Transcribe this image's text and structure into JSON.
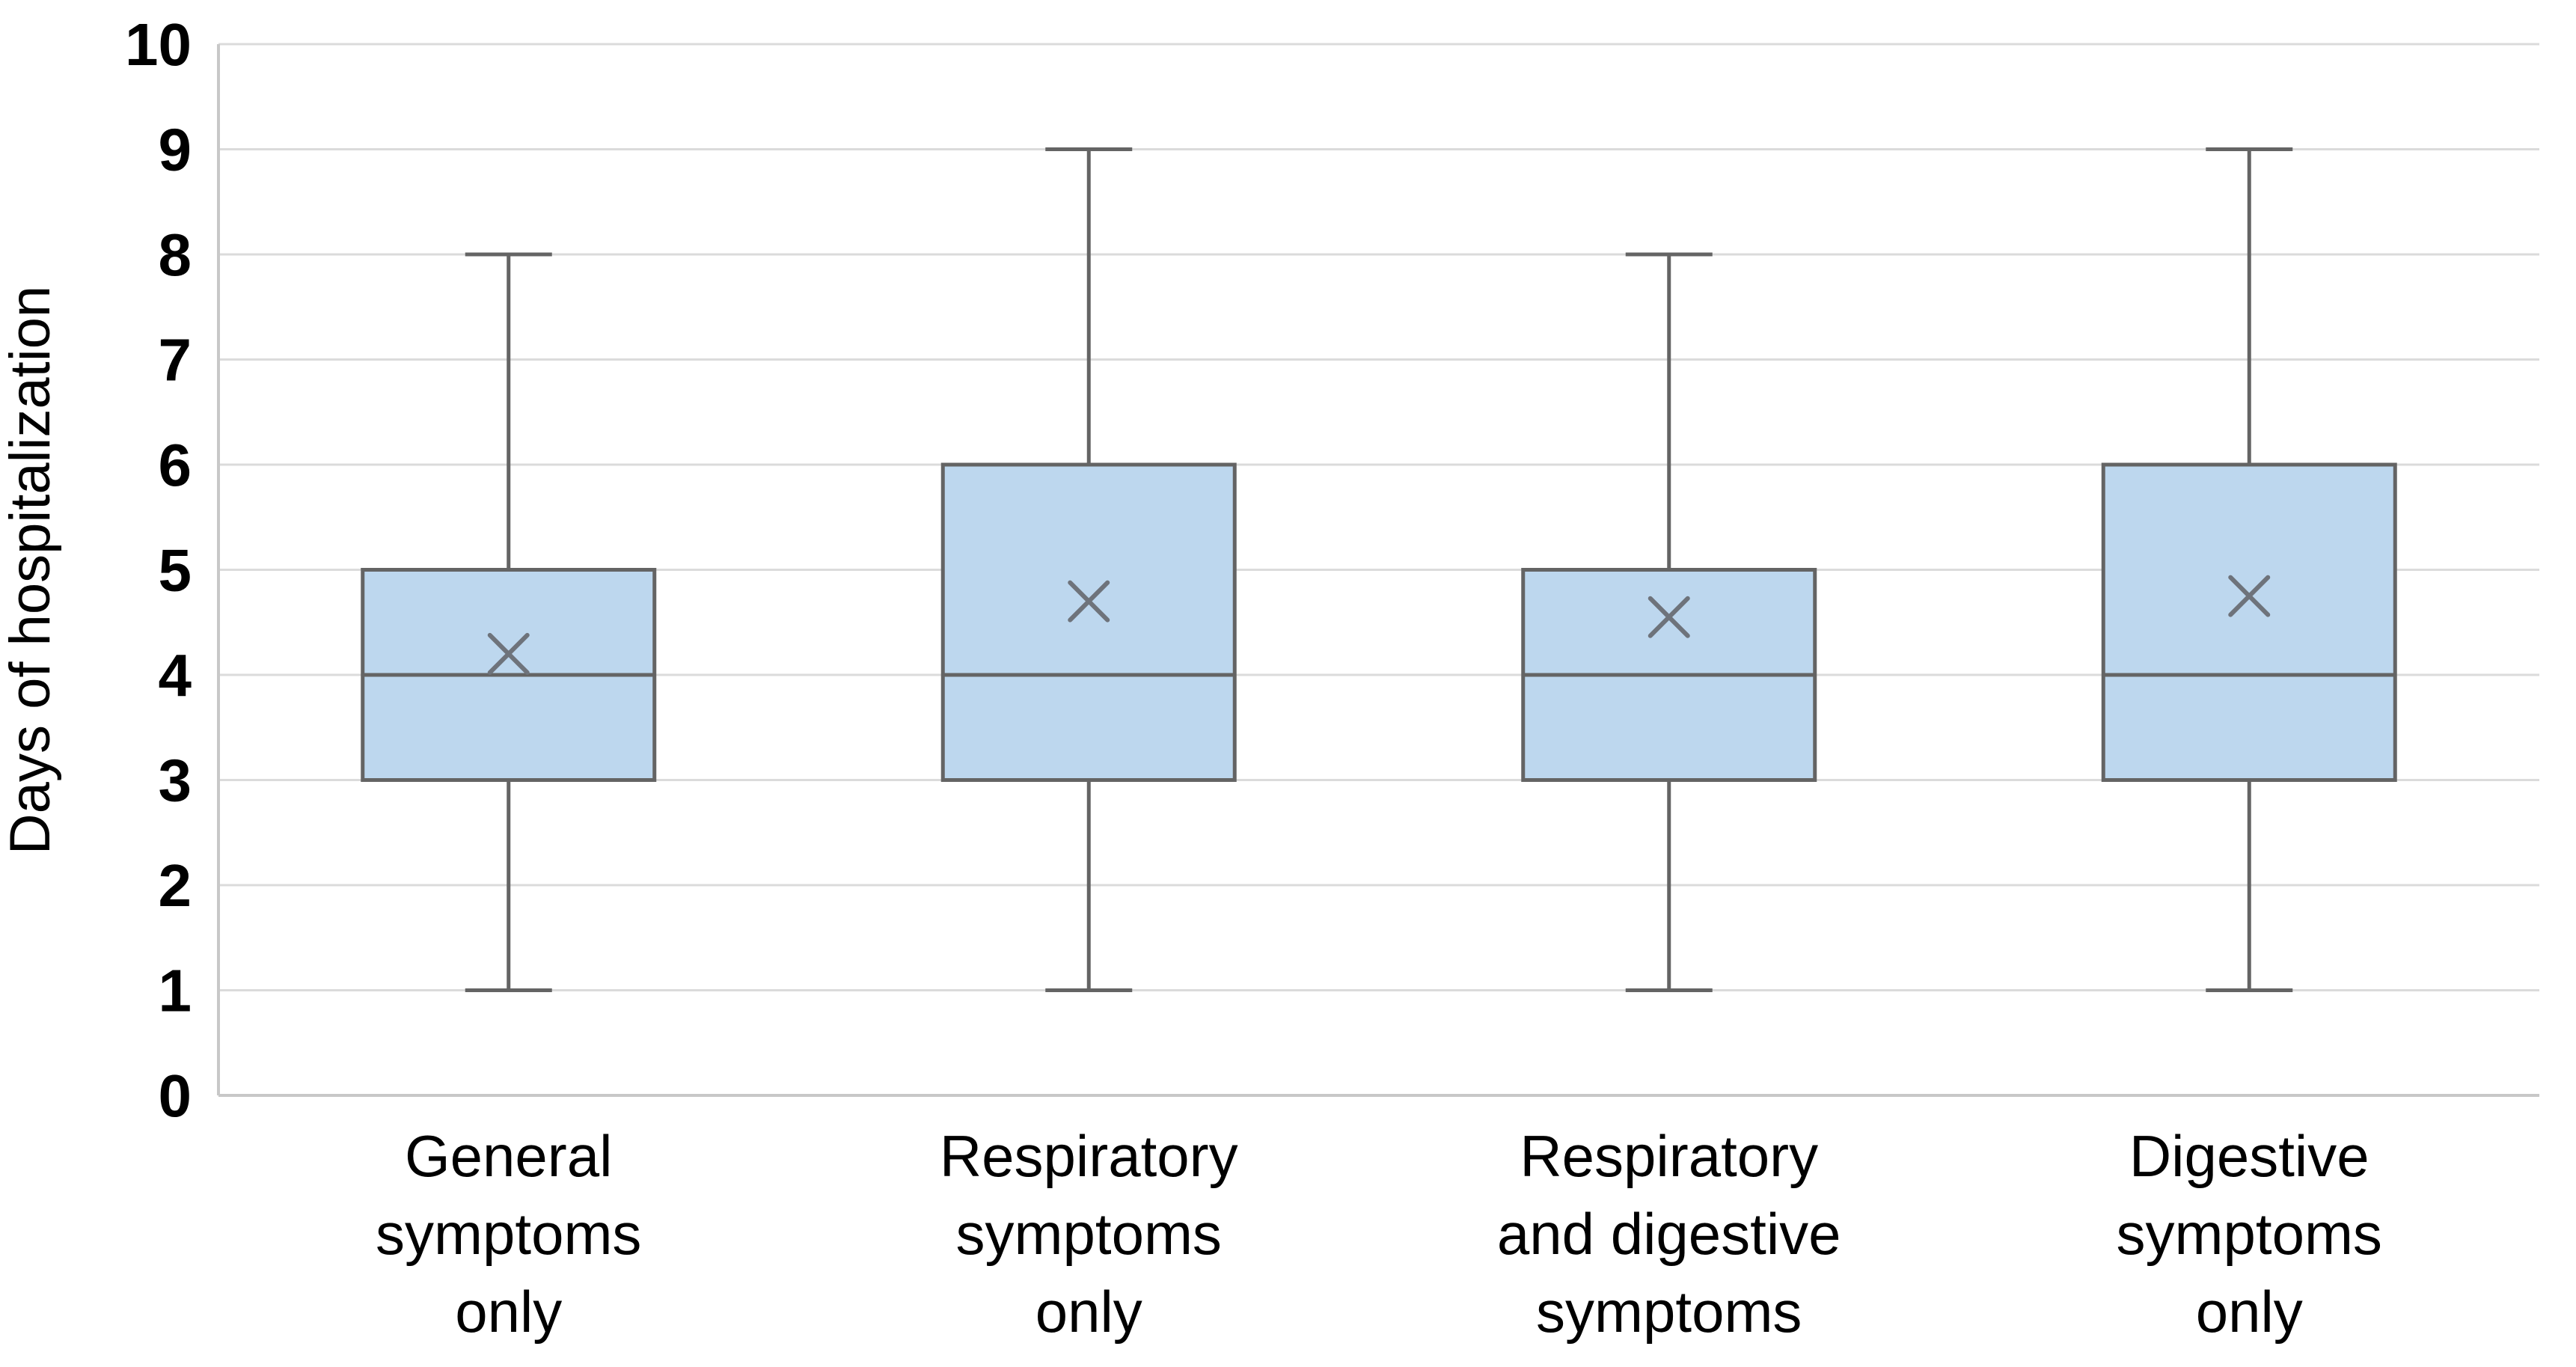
{
  "figure": {
    "background": "#ffffff"
  },
  "chart_data": {
    "type": "boxplot",
    "title": "",
    "xlabel": "",
    "ylabel": "Days of hospitalization",
    "ylim": [
      0,
      10
    ],
    "yticks": [
      0,
      1,
      2,
      3,
      4,
      5,
      6,
      7,
      8,
      9,
      10
    ],
    "ytick_labels": [
      "0",
      "1",
      "2",
      "3",
      "4",
      "5",
      "6",
      "7",
      "8",
      "9",
      "10"
    ],
    "grid": true,
    "legend": false,
    "categories": [
      "General symptoms only",
      "Respiratory symptoms only",
      "Respiratory and digestive symptoms",
      "Digestive symptoms only"
    ],
    "categories_lines": [
      [
        "General",
        "symptoms",
        "only"
      ],
      [
        "Respiratory",
        "symptoms",
        "only"
      ],
      [
        "Respiratory",
        "and digestive",
        "symptoms"
      ],
      [
        "Digestive",
        "symptoms",
        "only"
      ]
    ],
    "series": [
      {
        "name": "General symptoms only",
        "min": 1,
        "q1": 3,
        "median": 4,
        "q3": 5,
        "max": 8,
        "mean": 4.2
      },
      {
        "name": "Respiratory symptoms only",
        "min": 1,
        "q1": 3,
        "median": 4,
        "q3": 6,
        "max": 9,
        "mean": 4.7
      },
      {
        "name": "Respiratory and digestive symptoms",
        "min": 1,
        "q1": 3,
        "median": 4,
        "q3": 5,
        "max": 8,
        "mean": 4.55
      },
      {
        "name": "Digestive symptoms only",
        "min": 1,
        "q1": 3,
        "median": 4,
        "q3": 6,
        "max": 9,
        "mean": 4.75
      }
    ],
    "mean_marker": "x-cross",
    "colors": {
      "box_fill": "#BDD7EE",
      "box_border": "#646464",
      "whisker": "#646464",
      "median": "#646464",
      "mean_marker": "#6E737B",
      "gridline": "#DBDBDB",
      "axis_line": "#C8C8C8",
      "text": "#000000"
    }
  }
}
